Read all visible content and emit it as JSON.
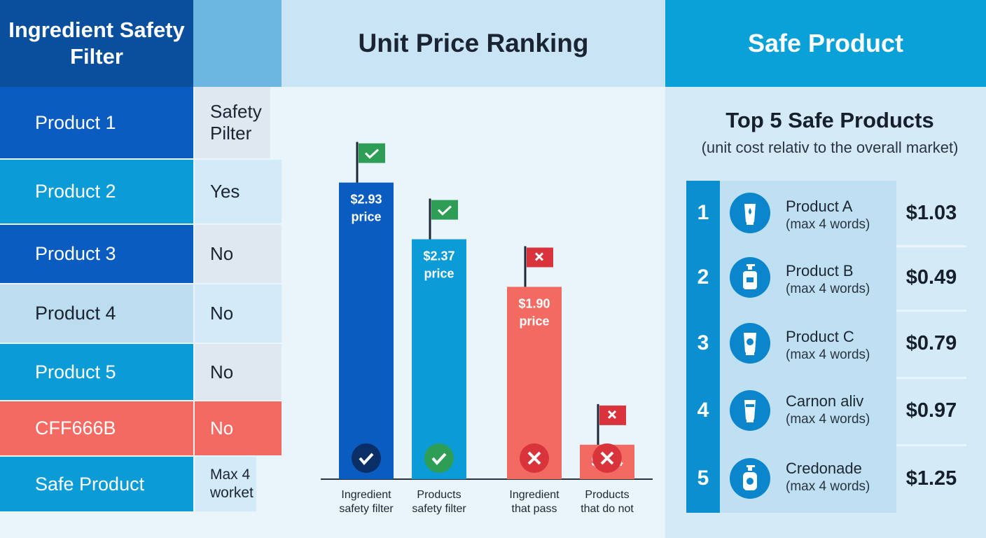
{
  "left_panel": {
    "title": "Ingredient Safety Filter",
    "rows": [
      {
        "name": "Product 1",
        "value": "Safety Pilter",
        "color": "#0b5cc0",
        "text": "#ffffff",
        "valbg": "#dfe7f1"
      },
      {
        "name": "Product 2",
        "value": "Yes",
        "color": "#0b9bd6",
        "text": "#ffffff",
        "valbg": "#d3ebf8"
      },
      {
        "name": "Product 3",
        "value": "No",
        "color": "#0b5cc0",
        "text": "#ffffff",
        "valbg": "#dfe7f1"
      },
      {
        "name": "Product 4",
        "value": "No",
        "color": "#bcdcf0",
        "text": "#1b2430",
        "valbg": "#d3ebf8"
      },
      {
        "name": "Product 5",
        "value": "No",
        "color": "#0b9bd6",
        "text": "#ffffff",
        "valbg": "#dfe7f1"
      },
      {
        "name": "CFF666B",
        "value": "No",
        "color": "#f36a62",
        "text": "#ffffff",
        "valbg": "#f36a62"
      },
      {
        "name": "Safe Product",
        "value": "Max 4 worket",
        "color": "#0b9bd6",
        "text": "#ffffff",
        "valbg": "#d3ebf8"
      }
    ]
  },
  "chart_data": {
    "type": "bar",
    "title": "Unit Price Ranking",
    "categories": [
      "Ingredient safety filter",
      "Products safety filter",
      "Ingredient that pass",
      "Products that do not"
    ],
    "values": [
      2.93,
      2.37,
      1.9,
      0.34
    ],
    "data_labels": [
      "$2.93 price",
      "$2.37 price",
      "$1.90 price",
      "$0.34"
    ],
    "status": [
      "pass",
      "pass",
      "fail",
      "fail"
    ],
    "colors": [
      "#0b5cc0",
      "#0b9bd6",
      "#f36a62",
      "#f36a62"
    ]
  },
  "right_panel": {
    "header": "Safe Product",
    "title": "Top 5 Safe Products",
    "subtitle": "(unit cost relativ to the overall market)",
    "items": [
      {
        "rank": "1",
        "name": "Product A",
        "note": "(max 4 words)",
        "price": "$1.03",
        "icon": "tube-drop-icon"
      },
      {
        "rank": "2",
        "name": "Product B",
        "note": "(max 4 words)",
        "price": "$0.49",
        "icon": "pump-bottle-icon"
      },
      {
        "rank": "3",
        "name": "Product C",
        "note": "(max 4 words)",
        "price": "$0.79",
        "icon": "tube-circle-icon"
      },
      {
        "rank": "4",
        "name": "Carnon aliv",
        "note": "(max 4 words)",
        "price": "$0.97",
        "icon": "tube-icon"
      },
      {
        "rank": "5",
        "name": "Credonade",
        "note": "(max 4 words)",
        "price": "$1.25",
        "icon": "pump-bottle-icon"
      }
    ]
  }
}
